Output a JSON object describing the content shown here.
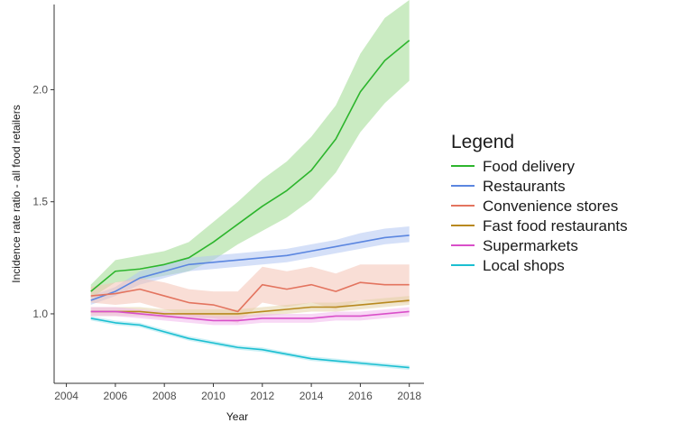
{
  "chart_data": {
    "type": "line",
    "xlabel": "Year",
    "ylabel": "Incidence rate ratio - all food retailers",
    "xlim": [
      2003.5,
      2018.6
    ],
    "ylim": [
      0.69,
      2.38
    ],
    "x_ticks": [
      2004,
      2006,
      2008,
      2010,
      2012,
      2014,
      2016,
      2018
    ],
    "x_tick_labels": [
      "2004",
      "2006",
      "2008",
      "2010",
      "2012",
      "2014",
      "2016",
      "2018"
    ],
    "y_ticks": [
      1.0,
      1.5,
      2.0
    ],
    "y_tick_labels": [
      "1.0",
      "1.5",
      "2.0"
    ],
    "grid": false,
    "legend": {
      "title": "Legend",
      "placement": "right"
    },
    "x": [
      2005,
      2006,
      2007,
      2008,
      2009,
      2010,
      2011,
      2012,
      2013,
      2014,
      2015,
      2016,
      2017,
      2018
    ],
    "series": [
      {
        "name": "Food delivery",
        "color": "#2db52d",
        "band_color": "#9edb8f",
        "values": [
          1.1,
          1.19,
          1.2,
          1.22,
          1.25,
          1.32,
          1.4,
          1.48,
          1.55,
          1.64,
          1.78,
          1.99,
          2.13,
          2.22
        ],
        "lower": [
          1.07,
          1.14,
          1.15,
          1.17,
          1.19,
          1.24,
          1.31,
          1.37,
          1.43,
          1.51,
          1.63,
          1.81,
          1.94,
          2.04
        ],
        "upper": [
          1.13,
          1.24,
          1.26,
          1.28,
          1.32,
          1.41,
          1.5,
          1.6,
          1.68,
          1.79,
          1.93,
          2.16,
          2.32,
          2.4
        ]
      },
      {
        "name": "Restaurants",
        "color": "#5b86e0",
        "band_color": "#b3c6f2",
        "values": [
          1.06,
          1.1,
          1.16,
          1.19,
          1.22,
          1.23,
          1.24,
          1.25,
          1.26,
          1.28,
          1.3,
          1.32,
          1.34,
          1.35
        ],
        "lower": [
          1.04,
          1.08,
          1.13,
          1.16,
          1.19,
          1.2,
          1.21,
          1.22,
          1.23,
          1.25,
          1.27,
          1.29,
          1.31,
          1.32
        ],
        "upper": [
          1.08,
          1.12,
          1.19,
          1.22,
          1.25,
          1.26,
          1.27,
          1.28,
          1.29,
          1.31,
          1.33,
          1.36,
          1.38,
          1.39
        ]
      },
      {
        "name": "Convenience stores",
        "color": "#e3745f",
        "band_color": "#f4c2b4",
        "values": [
          1.08,
          1.09,
          1.11,
          1.08,
          1.05,
          1.04,
          1.01,
          1.13,
          1.11,
          1.13,
          1.1,
          1.14,
          1.13,
          1.13
        ],
        "lower": [
          1.05,
          1.04,
          1.05,
          1.02,
          0.99,
          0.98,
          0.96,
          1.05,
          1.03,
          1.05,
          1.02,
          1.06,
          1.05,
          1.05
        ],
        "upper": [
          1.12,
          1.14,
          1.16,
          1.14,
          1.11,
          1.1,
          1.1,
          1.21,
          1.19,
          1.21,
          1.18,
          1.22,
          1.22,
          1.22
        ]
      },
      {
        "name": "Fast food restaurants",
        "color": "#b8891f",
        "band_color": "#e3d1a6",
        "values": [
          1.01,
          1.01,
          1.01,
          1.0,
          1.0,
          1.0,
          1.0,
          1.01,
          1.02,
          1.03,
          1.03,
          1.04,
          1.05,
          1.06
        ],
        "lower": [
          0.99,
          0.99,
          0.99,
          0.98,
          0.98,
          0.98,
          0.98,
          0.99,
          1.0,
          1.01,
          1.01,
          1.02,
          1.03,
          1.04
        ],
        "upper": [
          1.03,
          1.03,
          1.03,
          1.02,
          1.02,
          1.02,
          1.02,
          1.03,
          1.04,
          1.05,
          1.05,
          1.06,
          1.07,
          1.08
        ]
      },
      {
        "name": "Supermarkets",
        "color": "#d94fc9",
        "band_color": "#f2b8ec",
        "values": [
          1.01,
          1.01,
          1.0,
          0.99,
          0.98,
          0.97,
          0.97,
          0.98,
          0.98,
          0.98,
          0.99,
          0.99,
          1.0,
          1.01
        ],
        "lower": [
          0.99,
          0.99,
          0.98,
          0.97,
          0.96,
          0.95,
          0.95,
          0.96,
          0.96,
          0.96,
          0.97,
          0.97,
          0.98,
          0.99
        ],
        "upper": [
          1.03,
          1.03,
          1.02,
          1.01,
          1.0,
          0.99,
          0.99,
          1.0,
          1.0,
          1.0,
          1.01,
          1.01,
          1.02,
          1.03
        ]
      },
      {
        "name": "Local shops",
        "color": "#1bbfd1",
        "band_color": "#a5e5ee",
        "values": [
          0.98,
          0.96,
          0.95,
          0.92,
          0.89,
          0.87,
          0.85,
          0.84,
          0.82,
          0.8,
          0.79,
          0.78,
          0.77,
          0.76
        ],
        "lower": [
          0.97,
          0.95,
          0.94,
          0.91,
          0.88,
          0.86,
          0.84,
          0.83,
          0.81,
          0.79,
          0.78,
          0.77,
          0.76,
          0.75
        ],
        "upper": [
          0.99,
          0.97,
          0.96,
          0.93,
          0.9,
          0.88,
          0.86,
          0.85,
          0.83,
          0.81,
          0.8,
          0.79,
          0.78,
          0.77
        ]
      }
    ]
  }
}
